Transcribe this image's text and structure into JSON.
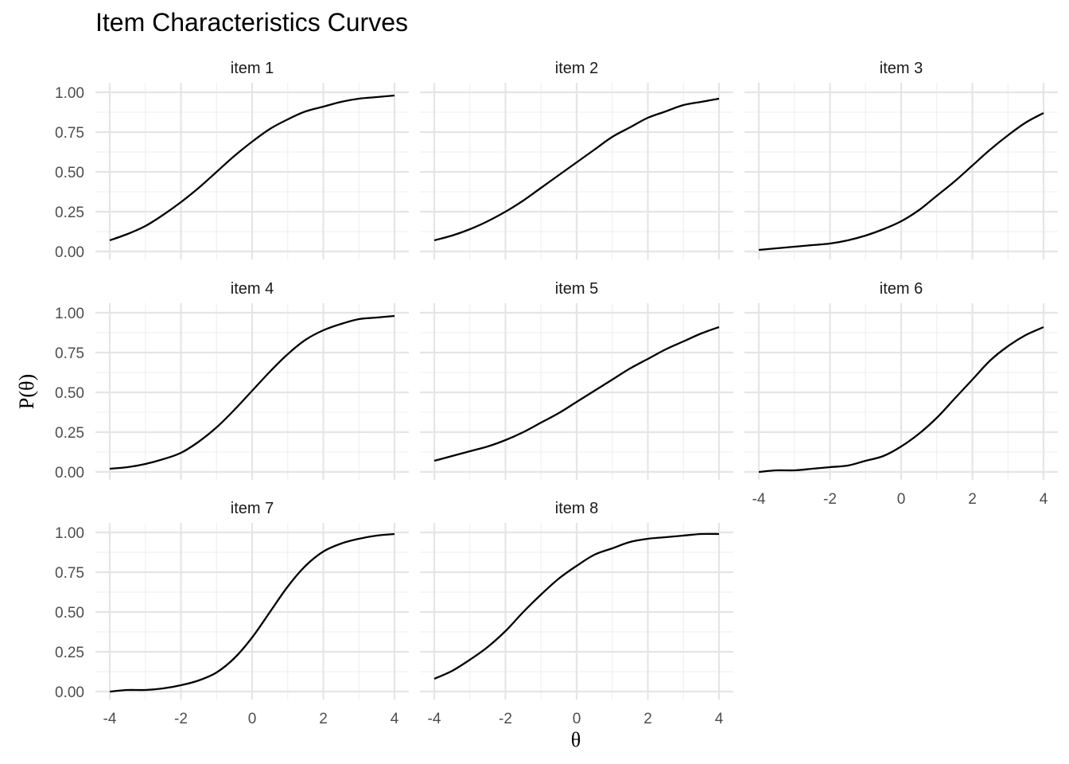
{
  "chart_data": {
    "type": "line",
    "title": "Item Characteristics Curves",
    "xlabel": "θ",
    "ylabel": "P(θ)",
    "xlim": [
      -4,
      4
    ],
    "ylim": [
      0,
      1
    ],
    "x_ticks": [
      "-4",
      "-2",
      "0",
      "2",
      "4"
    ],
    "y_ticks": [
      "0.00",
      "0.25",
      "0.50",
      "0.75",
      "1.00"
    ],
    "grid": true,
    "x": [
      -4,
      -3.5,
      -3,
      -2.5,
      -2,
      -1.5,
      -1,
      -0.5,
      0,
      0.5,
      1,
      1.5,
      2,
      2.5,
      3,
      3.5,
      4
    ],
    "series": [
      {
        "name": "item 1",
        "values": [
          0.07,
          0.11,
          0.16,
          0.23,
          0.31,
          0.4,
          0.5,
          0.6,
          0.69,
          0.77,
          0.83,
          0.88,
          0.91,
          0.94,
          0.96,
          0.97,
          0.98
        ]
      },
      {
        "name": "item 2",
        "values": [
          0.07,
          0.1,
          0.14,
          0.19,
          0.25,
          0.32,
          0.4,
          0.48,
          0.56,
          0.64,
          0.72,
          0.78,
          0.84,
          0.88,
          0.92,
          0.94,
          0.96
        ]
      },
      {
        "name": "item 3",
        "values": [
          0.01,
          0.02,
          0.03,
          0.04,
          0.05,
          0.07,
          0.1,
          0.14,
          0.19,
          0.26,
          0.35,
          0.44,
          0.54,
          0.64,
          0.73,
          0.81,
          0.87
        ]
      },
      {
        "name": "item 4",
        "values": [
          0.02,
          0.03,
          0.05,
          0.08,
          0.12,
          0.19,
          0.28,
          0.39,
          0.51,
          0.63,
          0.74,
          0.83,
          0.89,
          0.93,
          0.96,
          0.97,
          0.98
        ]
      },
      {
        "name": "item 5",
        "values": [
          0.07,
          0.1,
          0.13,
          0.16,
          0.2,
          0.25,
          0.31,
          0.37,
          0.44,
          0.51,
          0.58,
          0.65,
          0.71,
          0.77,
          0.82,
          0.87,
          0.91
        ]
      },
      {
        "name": "item 6",
        "values": [
          0.0,
          0.01,
          0.01,
          0.02,
          0.03,
          0.04,
          0.07,
          0.1,
          0.16,
          0.24,
          0.34,
          0.46,
          0.58,
          0.7,
          0.79,
          0.86,
          0.91
        ]
      },
      {
        "name": "item 7",
        "values": [
          0.0,
          0.01,
          0.01,
          0.02,
          0.04,
          0.07,
          0.12,
          0.21,
          0.34,
          0.5,
          0.66,
          0.79,
          0.88,
          0.93,
          0.96,
          0.98,
          0.99
        ]
      },
      {
        "name": "item 8",
        "values": [
          0.08,
          0.13,
          0.2,
          0.28,
          0.38,
          0.5,
          0.61,
          0.71,
          0.79,
          0.86,
          0.9,
          0.94,
          0.96,
          0.97,
          0.98,
          0.99,
          0.99
        ]
      }
    ]
  }
}
